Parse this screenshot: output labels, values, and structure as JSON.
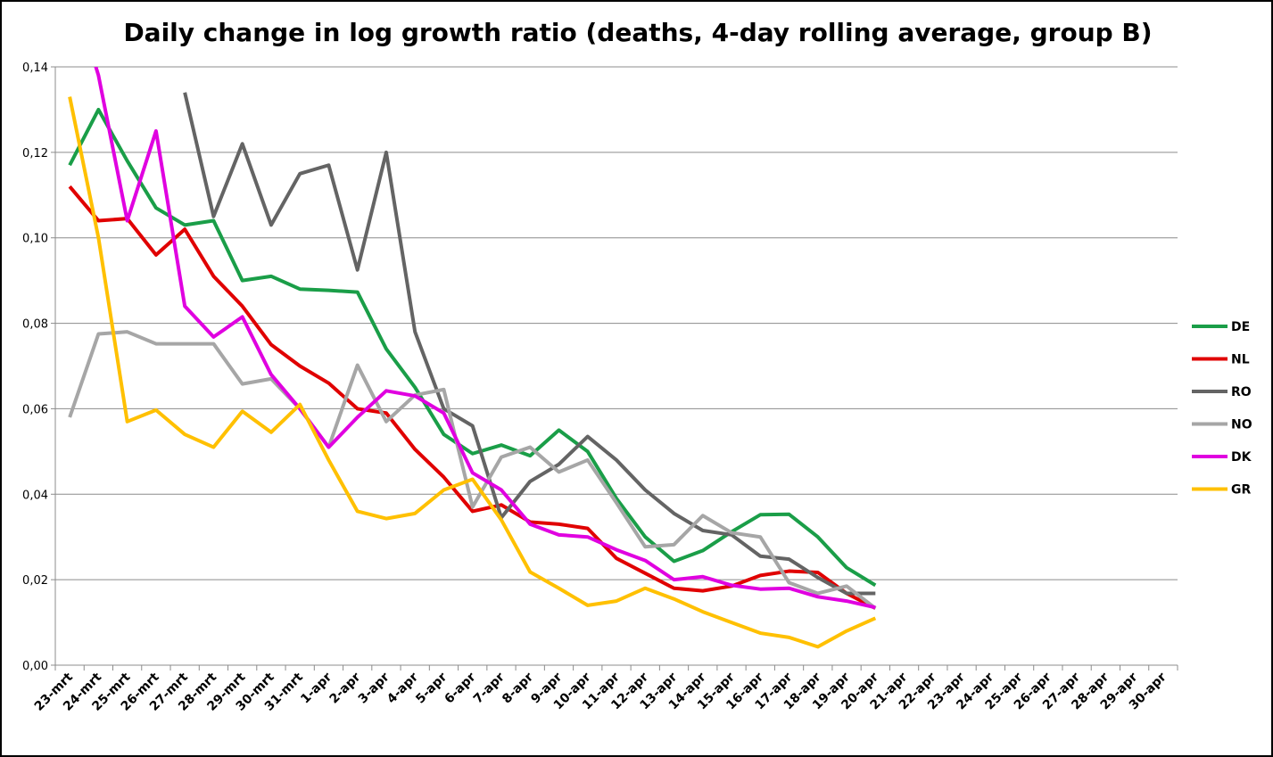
{
  "chart_data": {
    "type": "line",
    "title": "Daily change in log growth ratio (deaths, 4-day rolling average, group B)",
    "categories": [
      "23-mrt",
      "24-mrt",
      "25-mrt",
      "26-mrt",
      "27-mrt",
      "28-mrt",
      "29-mrt",
      "30-mrt",
      "31-mrt",
      "1-apr",
      "2-apr",
      "3-apr",
      "4-apr",
      "5-apr",
      "6-apr",
      "7-apr",
      "8-apr",
      "9-apr",
      "10-apr",
      "11-apr",
      "12-apr",
      "13-apr",
      "14-apr",
      "15-apr",
      "16-apr",
      "17-apr",
      "18-apr",
      "19-apr",
      "20-apr",
      "21-apr",
      "22-apr",
      "23-apr",
      "24-apr",
      "25-apr",
      "26-apr",
      "27-apr",
      "28-apr",
      "29-apr",
      "30-apr"
    ],
    "series": [
      {
        "name": "DE",
        "color": "#1a9e48",
        "values": [
          0.117,
          0.13,
          0.118,
          0.107,
          0.103,
          0.104,
          0.09,
          0.091,
          0.088,
          0.0877,
          0.0873,
          0.074,
          0.065,
          0.054,
          0.0495,
          0.0515,
          0.049,
          0.055,
          0.05,
          0.039,
          0.03,
          0.0243,
          0.0268,
          0.0312,
          0.0352,
          0.0353,
          0.03,
          0.0228,
          0.0187,
          null,
          null,
          null,
          null,
          null,
          null,
          null,
          null,
          null,
          null
        ]
      },
      {
        "name": "NL",
        "color": "#e00000",
        "values": [
          0.112,
          0.104,
          0.1045,
          0.096,
          0.102,
          0.091,
          0.084,
          0.075,
          0.07,
          0.066,
          0.06,
          0.059,
          0.0505,
          0.044,
          0.036,
          0.0375,
          0.0335,
          0.033,
          0.032,
          0.025,
          0.0215,
          0.018,
          0.0174,
          0.0185,
          0.021,
          0.022,
          0.0217,
          0.0168,
          0.0133,
          null,
          null,
          null,
          null,
          null,
          null,
          null,
          null,
          null,
          null
        ]
      },
      {
        "name": "RO",
        "color": "#646464",
        "values": [
          null,
          null,
          null,
          null,
          0.134,
          0.105,
          0.122,
          0.103,
          0.115,
          0.117,
          0.0925,
          0.12,
          0.078,
          0.06,
          0.056,
          0.0345,
          0.043,
          0.047,
          0.0535,
          0.048,
          0.041,
          0.0355,
          0.0315,
          0.0305,
          0.0255,
          0.0248,
          0.0205,
          0.0168,
          0.0168,
          null,
          null,
          null,
          null,
          null,
          null,
          null,
          null,
          null,
          null
        ]
      },
      {
        "name": "NO",
        "color": "#a6a6a6",
        "values": [
          0.058,
          0.0775,
          0.078,
          0.0752,
          0.0752,
          0.0752,
          0.0658,
          0.067,
          0.06,
          0.051,
          0.0702,
          0.057,
          0.0632,
          0.0645,
          0.037,
          0.0487,
          0.051,
          0.0452,
          0.048,
          0.038,
          0.0277,
          0.0282,
          0.035,
          0.031,
          0.03,
          0.0193,
          0.0168,
          0.0185,
          0.0133,
          null,
          null,
          null,
          null,
          null,
          null,
          null,
          null,
          null,
          null
        ]
      },
      {
        "name": "DK",
        "color": "#e000e0",
        "values": [
          0.16,
          0.138,
          0.104,
          0.125,
          0.084,
          0.0768,
          0.0815,
          0.068,
          0.06,
          0.051,
          0.058,
          0.0642,
          0.063,
          0.059,
          0.045,
          0.041,
          0.033,
          0.0305,
          0.03,
          0.027,
          0.0245,
          0.02,
          0.0207,
          0.0187,
          0.0178,
          0.018,
          0.016,
          0.015,
          0.0135,
          null,
          null,
          null,
          null,
          null,
          null,
          null,
          null,
          null,
          null
        ]
      },
      {
        "name": "GR",
        "color": "#ffc000",
        "values": [
          0.133,
          0.1,
          0.057,
          0.0597,
          0.054,
          0.051,
          0.0594,
          0.0545,
          0.061,
          0.048,
          0.036,
          0.0343,
          0.0355,
          0.041,
          0.0435,
          0.034,
          0.0218,
          0.018,
          0.014,
          0.015,
          0.018,
          0.0155,
          0.0125,
          0.01,
          0.0075,
          0.0065,
          0.0043,
          0.008,
          0.011,
          null,
          null,
          null,
          null,
          null,
          null,
          null,
          null,
          null,
          null
        ]
      }
    ],
    "ylim": [
      0,
      0.14
    ],
    "yticks": [
      {
        "value": 0,
        "label": "0,00"
      },
      {
        "value": 0.02,
        "label": "0,02"
      },
      {
        "value": 0.04,
        "label": "0,04"
      },
      {
        "value": 0.06,
        "label": "0,06"
      },
      {
        "value": 0.08,
        "label": "0,08"
      },
      {
        "value": 0.1,
        "label": "0,10"
      },
      {
        "value": 0.12,
        "label": "0,12"
      },
      {
        "value": 0.14,
        "label": "0,14"
      }
    ],
    "grid": true,
    "legend": "right"
  }
}
